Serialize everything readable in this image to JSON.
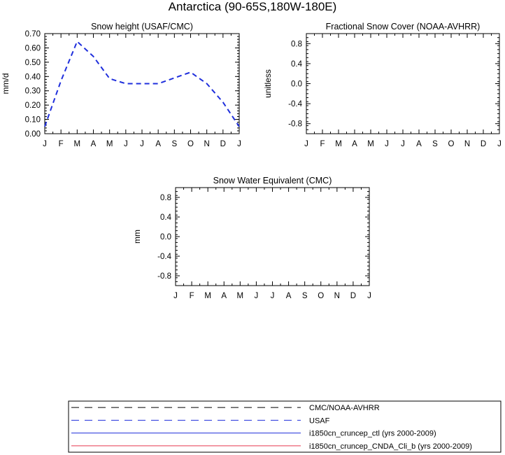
{
  "figure": {
    "title": "Antarctica (90-65S,180W-180E)"
  },
  "chart_data": [
    {
      "type": "line",
      "title": "Snow height (USAF/CMC)",
      "xlabel": "",
      "ylabel": "mm/d",
      "x_tick_labels": [
        "J",
        "F",
        "M",
        "A",
        "M",
        "J",
        "J",
        "A",
        "S",
        "O",
        "N",
        "D",
        "J"
      ],
      "ylim": [
        0,
        0.7
      ],
      "y_ticks": [
        0.0,
        0.1,
        0.2,
        0.3,
        0.4,
        0.5,
        0.6,
        0.7
      ],
      "y_tick_labels": [
        "0.00",
        "0.10",
        "0.20",
        "0.30",
        "0.40",
        "0.50",
        "0.60",
        "0.70"
      ],
      "grid": false,
      "series": [
        {
          "name": "USAF",
          "color": "#1f2fdc",
          "style": "dashed",
          "x": [
            0,
            1,
            2,
            3,
            4,
            5,
            6,
            7,
            8,
            9,
            10,
            11,
            12
          ],
          "values": [
            0.05,
            0.37,
            0.645,
            0.54,
            0.385,
            0.35,
            0.35,
            0.35,
            0.39,
            0.43,
            0.35,
            0.22,
            0.05
          ]
        }
      ]
    },
    {
      "type": "line",
      "title": "Fractional Snow Cover (NOAA-AVHRR)",
      "xlabel": "",
      "ylabel": "unitless",
      "x_tick_labels": [
        "J",
        "F",
        "M",
        "A",
        "M",
        "J",
        "J",
        "A",
        "S",
        "O",
        "N",
        "D",
        "J"
      ],
      "ylim": [
        -1,
        1
      ],
      "y_ticks": [
        -0.8,
        -0.4,
        0.0,
        0.4,
        0.8
      ],
      "y_tick_labels": [
        "-0.8",
        "-0.4",
        "0.0",
        "0.4",
        "0.8"
      ],
      "grid": false,
      "series": []
    },
    {
      "type": "line",
      "title": "Snow Water Equivalent (CMC)",
      "xlabel": "",
      "ylabel": "mm",
      "x_tick_labels": [
        "J",
        "F",
        "M",
        "A",
        "M",
        "J",
        "J",
        "A",
        "S",
        "O",
        "N",
        "D",
        "J"
      ],
      "ylim": [
        -1,
        1
      ],
      "y_ticks": [
        -0.8,
        -0.4,
        0.0,
        0.4,
        0.8
      ],
      "y_tick_labels": [
        "-0.8",
        "-0.4",
        "0.0",
        "0.4",
        "0.8"
      ],
      "grid": false,
      "series": []
    }
  ],
  "legend": {
    "placement": "bottom",
    "entries": [
      {
        "label": "CMC/NOAA-AVHRR",
        "color": "#000000",
        "style": "dashed"
      },
      {
        "label": "USAF",
        "color": "#1f2fdc",
        "style": "dashed"
      },
      {
        "label": "i1850cn_cruncep_ctl (yrs 2000-2009)",
        "color": "#1f2fdc",
        "style": "solid"
      },
      {
        "label": "i1850cn_cruncep_CNDA_Cli_b (yrs 2000-2009)",
        "color": "#e8384f",
        "style": "solid"
      }
    ]
  }
}
